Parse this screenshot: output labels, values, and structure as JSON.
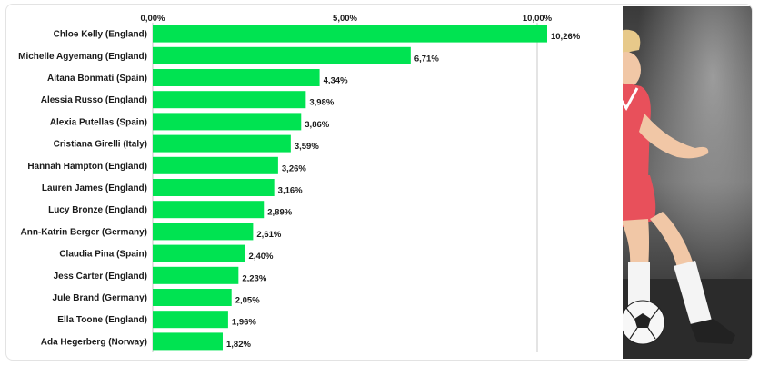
{
  "chart_data": {
    "type": "bar",
    "orientation": "horizontal",
    "categories": [
      "Chloe Kelly (England)",
      "Michelle Agyemang (England)",
      "Aitana Bonmati (Spain)",
      "Alessia Russo (England)",
      "Alexia Putellas (Spain)",
      "Cristiana Girelli (Italy)",
      "Hannah Hampton (England)",
      "Lauren James (England)",
      "Lucy Bronze (England)",
      "Ann-Katrin Berger (Germany)",
      "Claudia Pina (Spain)",
      "Jess Carter (England)",
      "Jule Brand (Germany)",
      "Ella Toone (England)",
      "Ada Hegerberg (Norway)"
    ],
    "values": [
      10.26,
      6.71,
      4.34,
      3.98,
      3.86,
      3.59,
      3.26,
      3.16,
      2.89,
      2.61,
      2.4,
      2.23,
      2.05,
      1.96,
      1.82
    ],
    "value_labels": [
      "10,26%",
      "6,71%",
      "4,34%",
      "3,98%",
      "3,86%",
      "3,59%",
      "3,26%",
      "3,16%",
      "2,89%",
      "2,61%",
      "2,40%",
      "2,23%",
      "2,05%",
      "1,96%",
      "1,82%"
    ],
    "x_ticks": [
      0,
      5,
      10
    ],
    "x_tick_labels": [
      "0,00%",
      "5,00%",
      "10,00%"
    ],
    "xlim": [
      0,
      12.4
    ],
    "grid": true,
    "legend": "none",
    "bar_color": "#00e351",
    "title": "",
    "xlabel": "",
    "ylabel": ""
  },
  "image": {
    "subject_icon": "female-soccer-player-photo",
    "jersey_color": "#e8505b",
    "background_color": "#2a2a2a"
  }
}
